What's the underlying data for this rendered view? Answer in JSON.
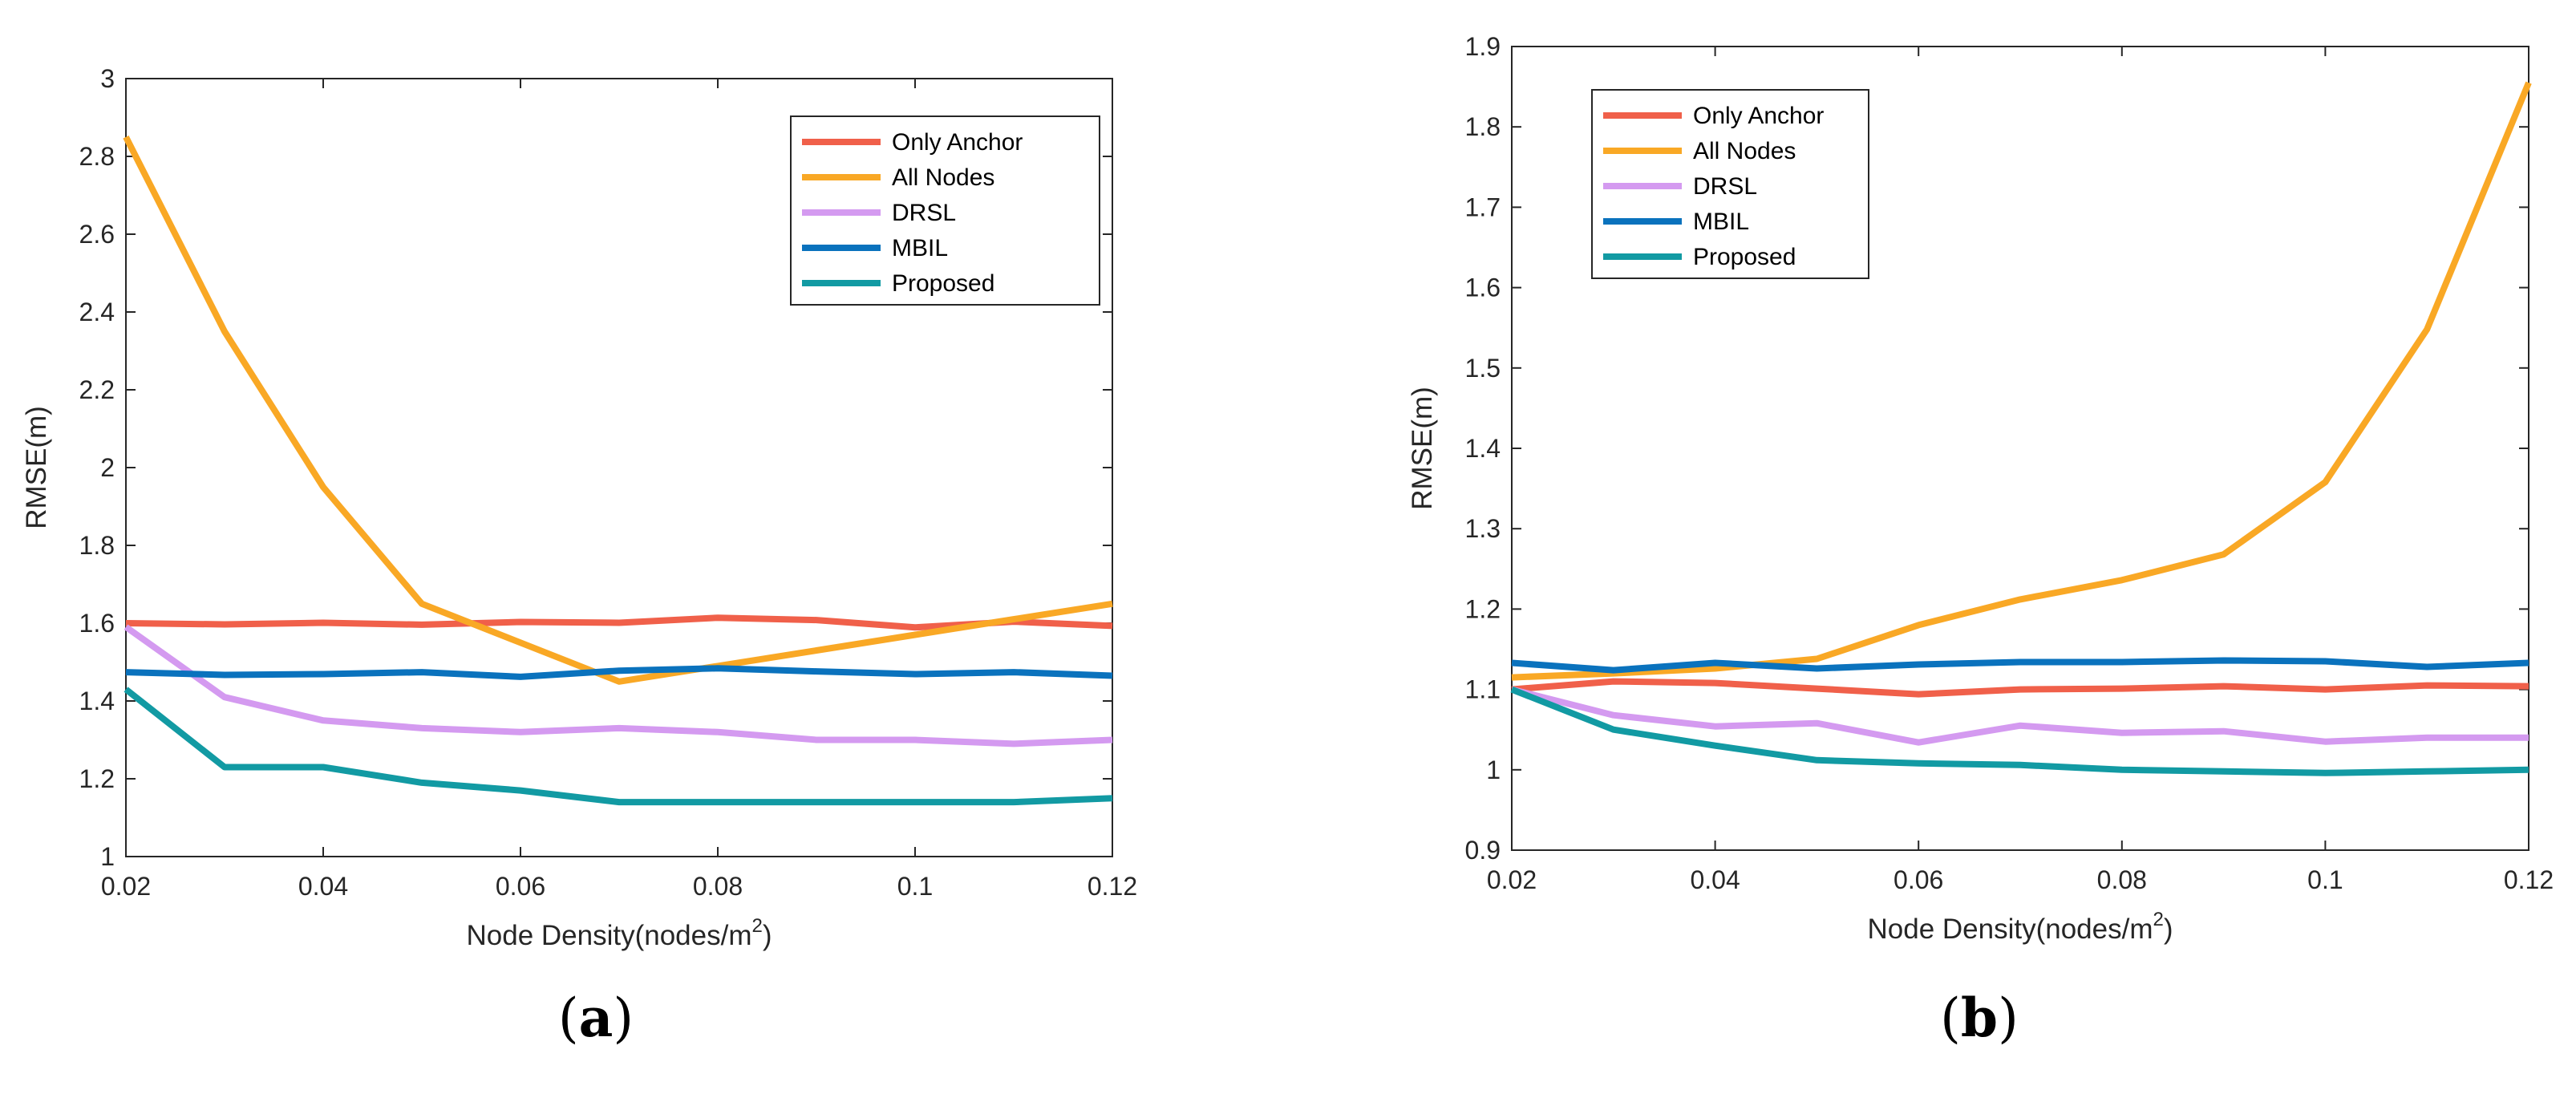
{
  "chart_data": [
    {
      "type": "line",
      "panel_label_open": "(",
      "panel_label_letter": "a",
      "panel_label_close": ")",
      "xlabel": "Node Density(nodes/m",
      "xlabel_sup": "2",
      "xlabel_close": ")",
      "ylabel": "RMSE(m)",
      "xlim": [
        0.02,
        0.12
      ],
      "ylim": [
        1,
        3
      ],
      "xticks": [
        "0.02",
        "0.04",
        "0.06",
        "0.08",
        "0.1",
        "0.12"
      ],
      "yticks": [
        "1",
        "1.2",
        "1.4",
        "1.6",
        "1.8",
        "2",
        "2.2",
        "2.4",
        "2.6",
        "2.8",
        "3"
      ],
      "grid": false,
      "legend_position": "top-right",
      "x": [
        0.02,
        0.03,
        0.04,
        0.05,
        0.06,
        0.07,
        0.08,
        0.09,
        0.1,
        0.11,
        0.12
      ],
      "series": [
        {
          "name": "Only Anchor",
          "color": "#f0604a",
          "values": [
            1.6,
            1.597,
            1.601,
            1.596,
            1.603,
            1.601,
            1.614,
            1.608,
            1.589,
            1.604,
            1.593
          ]
        },
        {
          "name": "All Nodes",
          "color": "#f9a825",
          "values": [
            2.85,
            2.35,
            1.95,
            1.65,
            1.55,
            1.45,
            1.49,
            1.53,
            1.57,
            1.61,
            1.65
          ]
        },
        {
          "name": "DRSL",
          "color": "#d49af0",
          "values": [
            1.59,
            1.41,
            1.35,
            1.33,
            1.32,
            1.33,
            1.32,
            1.3,
            1.3,
            1.29,
            1.3
          ]
        },
        {
          "name": "MBIL",
          "color": "#0a72bd",
          "values": [
            1.474,
            1.467,
            1.469,
            1.474,
            1.462,
            1.478,
            1.484,
            1.476,
            1.469,
            1.474,
            1.465
          ]
        },
        {
          "name": "Proposed",
          "color": "#129aa3",
          "values": [
            1.43,
            1.23,
            1.23,
            1.19,
            1.17,
            1.14,
            1.14,
            1.14,
            1.14,
            1.14,
            1.15
          ]
        }
      ]
    },
    {
      "type": "line",
      "panel_label_open": "(",
      "panel_label_letter": "b",
      "panel_label_close": ")",
      "xlabel": "Node Density(nodes/m",
      "xlabel_sup": "2",
      "xlabel_close": ")",
      "ylabel": "RMSE(m)",
      "xlim": [
        0.02,
        0.12
      ],
      "ylim": [
        0.9,
        1.9
      ],
      "xticks": [
        "0.02",
        "0.04",
        "0.06",
        "0.08",
        "0.1",
        "0.12"
      ],
      "yticks": [
        "0.9",
        "1",
        "1.1",
        "1.2",
        "1.3",
        "1.4",
        "1.5",
        "1.6",
        "1.7",
        "1.8",
        "1.9"
      ],
      "grid": false,
      "legend_position": "top-left",
      "x": [
        0.02,
        0.03,
        0.04,
        0.05,
        0.06,
        0.07,
        0.08,
        0.09,
        0.1,
        0.11,
        0.12
      ],
      "series": [
        {
          "name": "Only Anchor",
          "color": "#f0604a",
          "values": [
            1.1,
            1.11,
            1.108,
            1.101,
            1.094,
            1.1,
            1.101,
            1.104,
            1.1,
            1.105,
            1.104
          ]
        },
        {
          "name": "All Nodes",
          "color": "#f9a825",
          "values": [
            1.115,
            1.12,
            1.126,
            1.138,
            1.18,
            1.212,
            1.236,
            1.268,
            1.358,
            1.548,
            1.855
          ]
        },
        {
          "name": "DRSL",
          "color": "#d49af0",
          "values": [
            1.1,
            1.068,
            1.054,
            1.058,
            1.034,
            1.055,
            1.046,
            1.048,
            1.035,
            1.04,
            1.04
          ]
        },
        {
          "name": "MBIL",
          "color": "#0a72bd",
          "values": [
            1.133,
            1.124,
            1.133,
            1.126,
            1.131,
            1.134,
            1.134,
            1.136,
            1.135,
            1.128,
            1.133
          ]
        },
        {
          "name": "Proposed",
          "color": "#129aa3",
          "values": [
            1.1,
            1.05,
            1.03,
            1.012,
            1.008,
            1.006,
            1.0,
            0.998,
            0.996,
            0.998,
            1.0
          ]
        }
      ]
    }
  ]
}
